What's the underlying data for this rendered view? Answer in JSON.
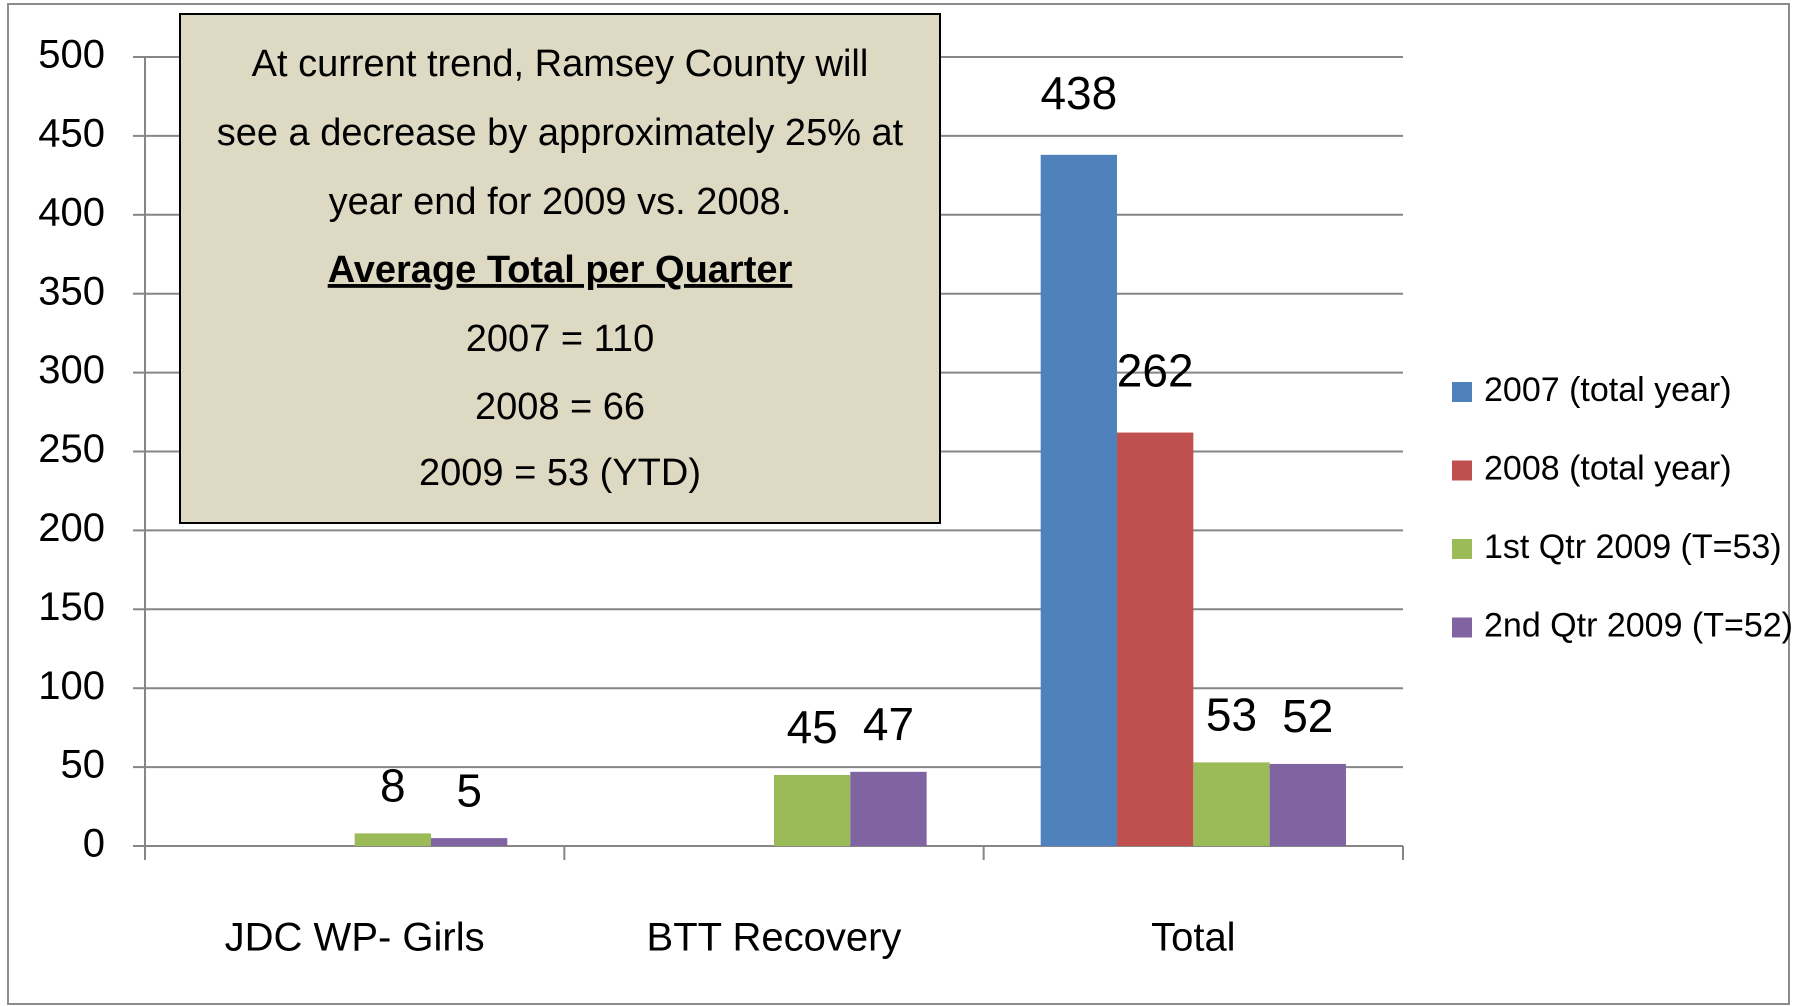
{
  "chart_data": {
    "type": "bar",
    "categories": [
      "JDC WP- Girls",
      "BTT Recovery",
      "Total"
    ],
    "series": [
      {
        "name": "2007 (total year)",
        "color": "#4f81bd",
        "values": [
          null,
          null,
          438
        ]
      },
      {
        "name": "2008 (total year)",
        "color": "#c0504d",
        "values": [
          null,
          null,
          262
        ]
      },
      {
        "name": "1st Qtr 2009 (T=53)",
        "color": "#9bbb59",
        "values": [
          8,
          45,
          53
        ]
      },
      {
        "name": "2nd Qtr 2009 (T=52)",
        "color": "#8064a2",
        "values": [
          5,
          47,
          52
        ]
      }
    ],
    "ylim": [
      0,
      500
    ],
    "yticks": [
      0,
      50,
      100,
      150,
      200,
      250,
      300,
      350,
      400,
      450,
      500
    ],
    "grid": true,
    "legend": "right",
    "annotation": {
      "lines": [
        "At current trend, Ramsey County will",
        "see a decrease by approximately 25%  at",
        "year end for 2009 vs. 2008.",
        "Average  Total per Quarter",
        "2007 = 110",
        "2008 = 66",
        "2009 = 53 (YTD)"
      ]
    }
  }
}
